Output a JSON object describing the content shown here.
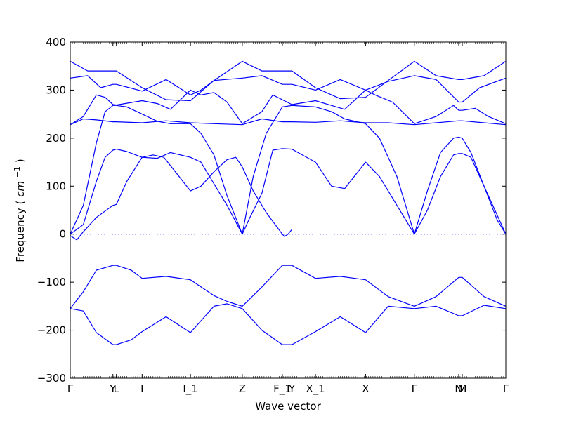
{
  "chart_data": {
    "type": "line",
    "title": "",
    "xlabel": "Wave vector",
    "ylabel_main": "Frequency",
    "ylabel_unit_base": "cm",
    "ylabel_unit_exp": "−1",
    "xlim": [
      0,
      1
    ],
    "ylim": [
      -300,
      400
    ],
    "yticks": [
      -300,
      -200,
      -100,
      0,
      100,
      200,
      300,
      400
    ],
    "xtick_labels": [
      "Γ",
      "Y",
      "L",
      "I",
      "I_1",
      "Z",
      "F_1",
      "Y",
      "X_1",
      "X",
      "Γ",
      "N",
      "M",
      "Γ"
    ],
    "xtick_positions": [
      0.0,
      0.098,
      0.106,
      0.165,
      0.276,
      0.395,
      0.487,
      0.509,
      0.563,
      0.678,
      0.79,
      0.892,
      0.9,
      1.0
    ],
    "zero_line": true,
    "line_color": "#0000ff",
    "series": [
      {
        "values": [
          [
            0.0,
            -3
          ],
          [
            0.015,
            -12
          ],
          [
            0.03,
            5
          ],
          [
            0.06,
            35
          ],
          [
            0.098,
            60
          ],
          [
            0.106,
            62
          ],
          [
            0.13,
            110
          ],
          [
            0.165,
            160
          ],
          [
            0.19,
            165
          ],
          [
            0.215,
            160
          ],
          [
            0.25,
            120
          ],
          [
            0.276,
            90
          ],
          [
            0.3,
            100
          ],
          [
            0.33,
            130
          ],
          [
            0.36,
            155
          ],
          [
            0.38,
            160
          ],
          [
            0.395,
            140
          ],
          [
            0.42,
            90
          ],
          [
            0.45,
            45
          ],
          [
            0.487,
            0
          ],
          [
            0.492,
            -5
          ],
          [
            0.5,
            0
          ],
          [
            0.509,
            10
          ]
        ]
      },
      {
        "values": [
          [
            0.0,
            0
          ],
          [
            0.03,
            20
          ],
          [
            0.06,
            110
          ],
          [
            0.08,
            160
          ],
          [
            0.098,
            175
          ],
          [
            0.106,
            177
          ],
          [
            0.13,
            172
          ],
          [
            0.165,
            160
          ],
          [
            0.2,
            158
          ],
          [
            0.23,
            170
          ],
          [
            0.276,
            160
          ],
          [
            0.3,
            150
          ],
          [
            0.33,
            105
          ],
          [
            0.36,
            60
          ],
          [
            0.395,
            0
          ],
          [
            0.41,
            30
          ],
          [
            0.44,
            85
          ],
          [
            0.465,
            175
          ],
          [
            0.487,
            178
          ],
          [
            0.509,
            177
          ],
          [
            0.563,
            150
          ],
          [
            0.6,
            100
          ],
          [
            0.63,
            95
          ],
          [
            0.678,
            150
          ],
          [
            0.71,
            120
          ],
          [
            0.75,
            60
          ],
          [
            0.79,
            0
          ],
          [
            0.82,
            50
          ],
          [
            0.85,
            120
          ],
          [
            0.88,
            165
          ],
          [
            0.892,
            168
          ],
          [
            0.9,
            168
          ],
          [
            0.92,
            160
          ],
          [
            0.95,
            100
          ],
          [
            0.98,
            40
          ],
          [
            1.0,
            0
          ]
        ]
      },
      {
        "values": [
          [
            0.0,
            0
          ],
          [
            0.03,
            60
          ],
          [
            0.06,
            190
          ],
          [
            0.08,
            255
          ],
          [
            0.098,
            268
          ],
          [
            0.106,
            268
          ],
          [
            0.13,
            265
          ],
          [
            0.165,
            250
          ],
          [
            0.2,
            235
          ],
          [
            0.23,
            230
          ],
          [
            0.276,
            230
          ],
          [
            0.3,
            210
          ],
          [
            0.33,
            165
          ],
          [
            0.36,
            80
          ],
          [
            0.395,
            0
          ],
          [
            0.42,
            120
          ],
          [
            0.45,
            210
          ],
          [
            0.487,
            265
          ],
          [
            0.509,
            268
          ],
          [
            0.563,
            265
          ],
          [
            0.6,
            255
          ],
          [
            0.63,
            240
          ],
          [
            0.678,
            230
          ],
          [
            0.71,
            200
          ],
          [
            0.75,
            120
          ],
          [
            0.79,
            0
          ],
          [
            0.82,
            90
          ],
          [
            0.85,
            170
          ],
          [
            0.88,
            200
          ],
          [
            0.892,
            202
          ],
          [
            0.9,
            200
          ],
          [
            0.92,
            170
          ],
          [
            0.95,
            100
          ],
          [
            0.98,
            30
          ],
          [
            1.0,
            0
          ]
        ]
      },
      {
        "values": [
          [
            0.0,
            228
          ],
          [
            0.03,
            240
          ],
          [
            0.06,
            238
          ],
          [
            0.098,
            234
          ],
          [
            0.106,
            234
          ],
          [
            0.165,
            232
          ],
          [
            0.22,
            236
          ],
          [
            0.276,
            232
          ],
          [
            0.33,
            230
          ],
          [
            0.395,
            228
          ],
          [
            0.44,
            240
          ],
          [
            0.487,
            234
          ],
          [
            0.509,
            234
          ],
          [
            0.563,
            233
          ],
          [
            0.62,
            236
          ],
          [
            0.678,
            232
          ],
          [
            0.73,
            232
          ],
          [
            0.79,
            228
          ],
          [
            0.84,
            232
          ],
          [
            0.892,
            236
          ],
          [
            0.9,
            236
          ],
          [
            0.95,
            232
          ],
          [
            1.0,
            228
          ]
        ]
      },
      {
        "values": [
          [
            0.0,
            228
          ],
          [
            0.03,
            245
          ],
          [
            0.06,
            290
          ],
          [
            0.08,
            285
          ],
          [
            0.098,
            270
          ],
          [
            0.106,
            269
          ],
          [
            0.165,
            278
          ],
          [
            0.2,
            272
          ],
          [
            0.23,
            260
          ],
          [
            0.276,
            300
          ],
          [
            0.3,
            290
          ],
          [
            0.33,
            295
          ],
          [
            0.36,
            275
          ],
          [
            0.395,
            230
          ],
          [
            0.44,
            255
          ],
          [
            0.465,
            290
          ],
          [
            0.487,
            280
          ],
          [
            0.509,
            270
          ],
          [
            0.563,
            278
          ],
          [
            0.6,
            268
          ],
          [
            0.63,
            260
          ],
          [
            0.678,
            300
          ],
          [
            0.7,
            290
          ],
          [
            0.74,
            275
          ],
          [
            0.79,
            230
          ],
          [
            0.84,
            245
          ],
          [
            0.88,
            268
          ],
          [
            0.892,
            258
          ],
          [
            0.9,
            258
          ],
          [
            0.93,
            262
          ],
          [
            0.96,
            245
          ],
          [
            1.0,
            230
          ]
        ]
      },
      {
        "values": [
          [
            0.0,
            325
          ],
          [
            0.04,
            330
          ],
          [
            0.07,
            305
          ],
          [
            0.098,
            312
          ],
          [
            0.106,
            312
          ],
          [
            0.165,
            298
          ],
          [
            0.22,
            322
          ],
          [
            0.276,
            290
          ],
          [
            0.3,
            300
          ],
          [
            0.33,
            320
          ],
          [
            0.395,
            325
          ],
          [
            0.44,
            330
          ],
          [
            0.487,
            312
          ],
          [
            0.509,
            312
          ],
          [
            0.563,
            300
          ],
          [
            0.62,
            322
          ],
          [
            0.678,
            300
          ],
          [
            0.73,
            318
          ],
          [
            0.79,
            330
          ],
          [
            0.84,
            322
          ],
          [
            0.892,
            275
          ],
          [
            0.9,
            275
          ],
          [
            0.94,
            305
          ],
          [
            1.0,
            325
          ]
        ]
      },
      {
        "values": [
          [
            0.0,
            360
          ],
          [
            0.04,
            340
          ],
          [
            0.098,
            340
          ],
          [
            0.106,
            340
          ],
          [
            0.165,
            305
          ],
          [
            0.22,
            280
          ],
          [
            0.276,
            278
          ],
          [
            0.33,
            320
          ],
          [
            0.395,
            360
          ],
          [
            0.44,
            340
          ],
          [
            0.487,
            340
          ],
          [
            0.509,
            340
          ],
          [
            0.563,
            305
          ],
          [
            0.62,
            282
          ],
          [
            0.678,
            285
          ],
          [
            0.73,
            320
          ],
          [
            0.79,
            360
          ],
          [
            0.84,
            330
          ],
          [
            0.892,
            322
          ],
          [
            0.9,
            322
          ],
          [
            0.95,
            330
          ],
          [
            1.0,
            360
          ]
        ]
      },
      {
        "values": [
          [
            0.0,
            -155
          ],
          [
            0.03,
            -120
          ],
          [
            0.06,
            -75
          ],
          [
            0.098,
            -65
          ],
          [
            0.106,
            -65
          ],
          [
            0.14,
            -75
          ],
          [
            0.165,
            -92
          ],
          [
            0.22,
            -88
          ],
          [
            0.276,
            -95
          ],
          [
            0.33,
            -128
          ],
          [
            0.36,
            -140
          ],
          [
            0.395,
            -150
          ],
          [
            0.44,
            -110
          ],
          [
            0.487,
            -65
          ],
          [
            0.509,
            -65
          ],
          [
            0.563,
            -92
          ],
          [
            0.62,
            -88
          ],
          [
            0.678,
            -95
          ],
          [
            0.73,
            -130
          ],
          [
            0.79,
            -150
          ],
          [
            0.84,
            -130
          ],
          [
            0.892,
            -90
          ],
          [
            0.9,
            -90
          ],
          [
            0.95,
            -130
          ],
          [
            1.0,
            -150
          ]
        ]
      },
      {
        "values": [
          [
            0.0,
            -155
          ],
          [
            0.03,
            -160
          ],
          [
            0.06,
            -205
          ],
          [
            0.098,
            -230
          ],
          [
            0.106,
            -230
          ],
          [
            0.14,
            -220
          ],
          [
            0.165,
            -203
          ],
          [
            0.22,
            -172
          ],
          [
            0.276,
            -205
          ],
          [
            0.33,
            -150
          ],
          [
            0.36,
            -145
          ],
          [
            0.395,
            -155
          ],
          [
            0.44,
            -200
          ],
          [
            0.487,
            -230
          ],
          [
            0.509,
            -230
          ],
          [
            0.563,
            -203
          ],
          [
            0.62,
            -172
          ],
          [
            0.678,
            -205
          ],
          [
            0.73,
            -150
          ],
          [
            0.79,
            -155
          ],
          [
            0.84,
            -150
          ],
          [
            0.892,
            -170
          ],
          [
            0.9,
            -170
          ],
          [
            0.95,
            -148
          ],
          [
            1.0,
            -155
          ]
        ]
      }
    ]
  }
}
